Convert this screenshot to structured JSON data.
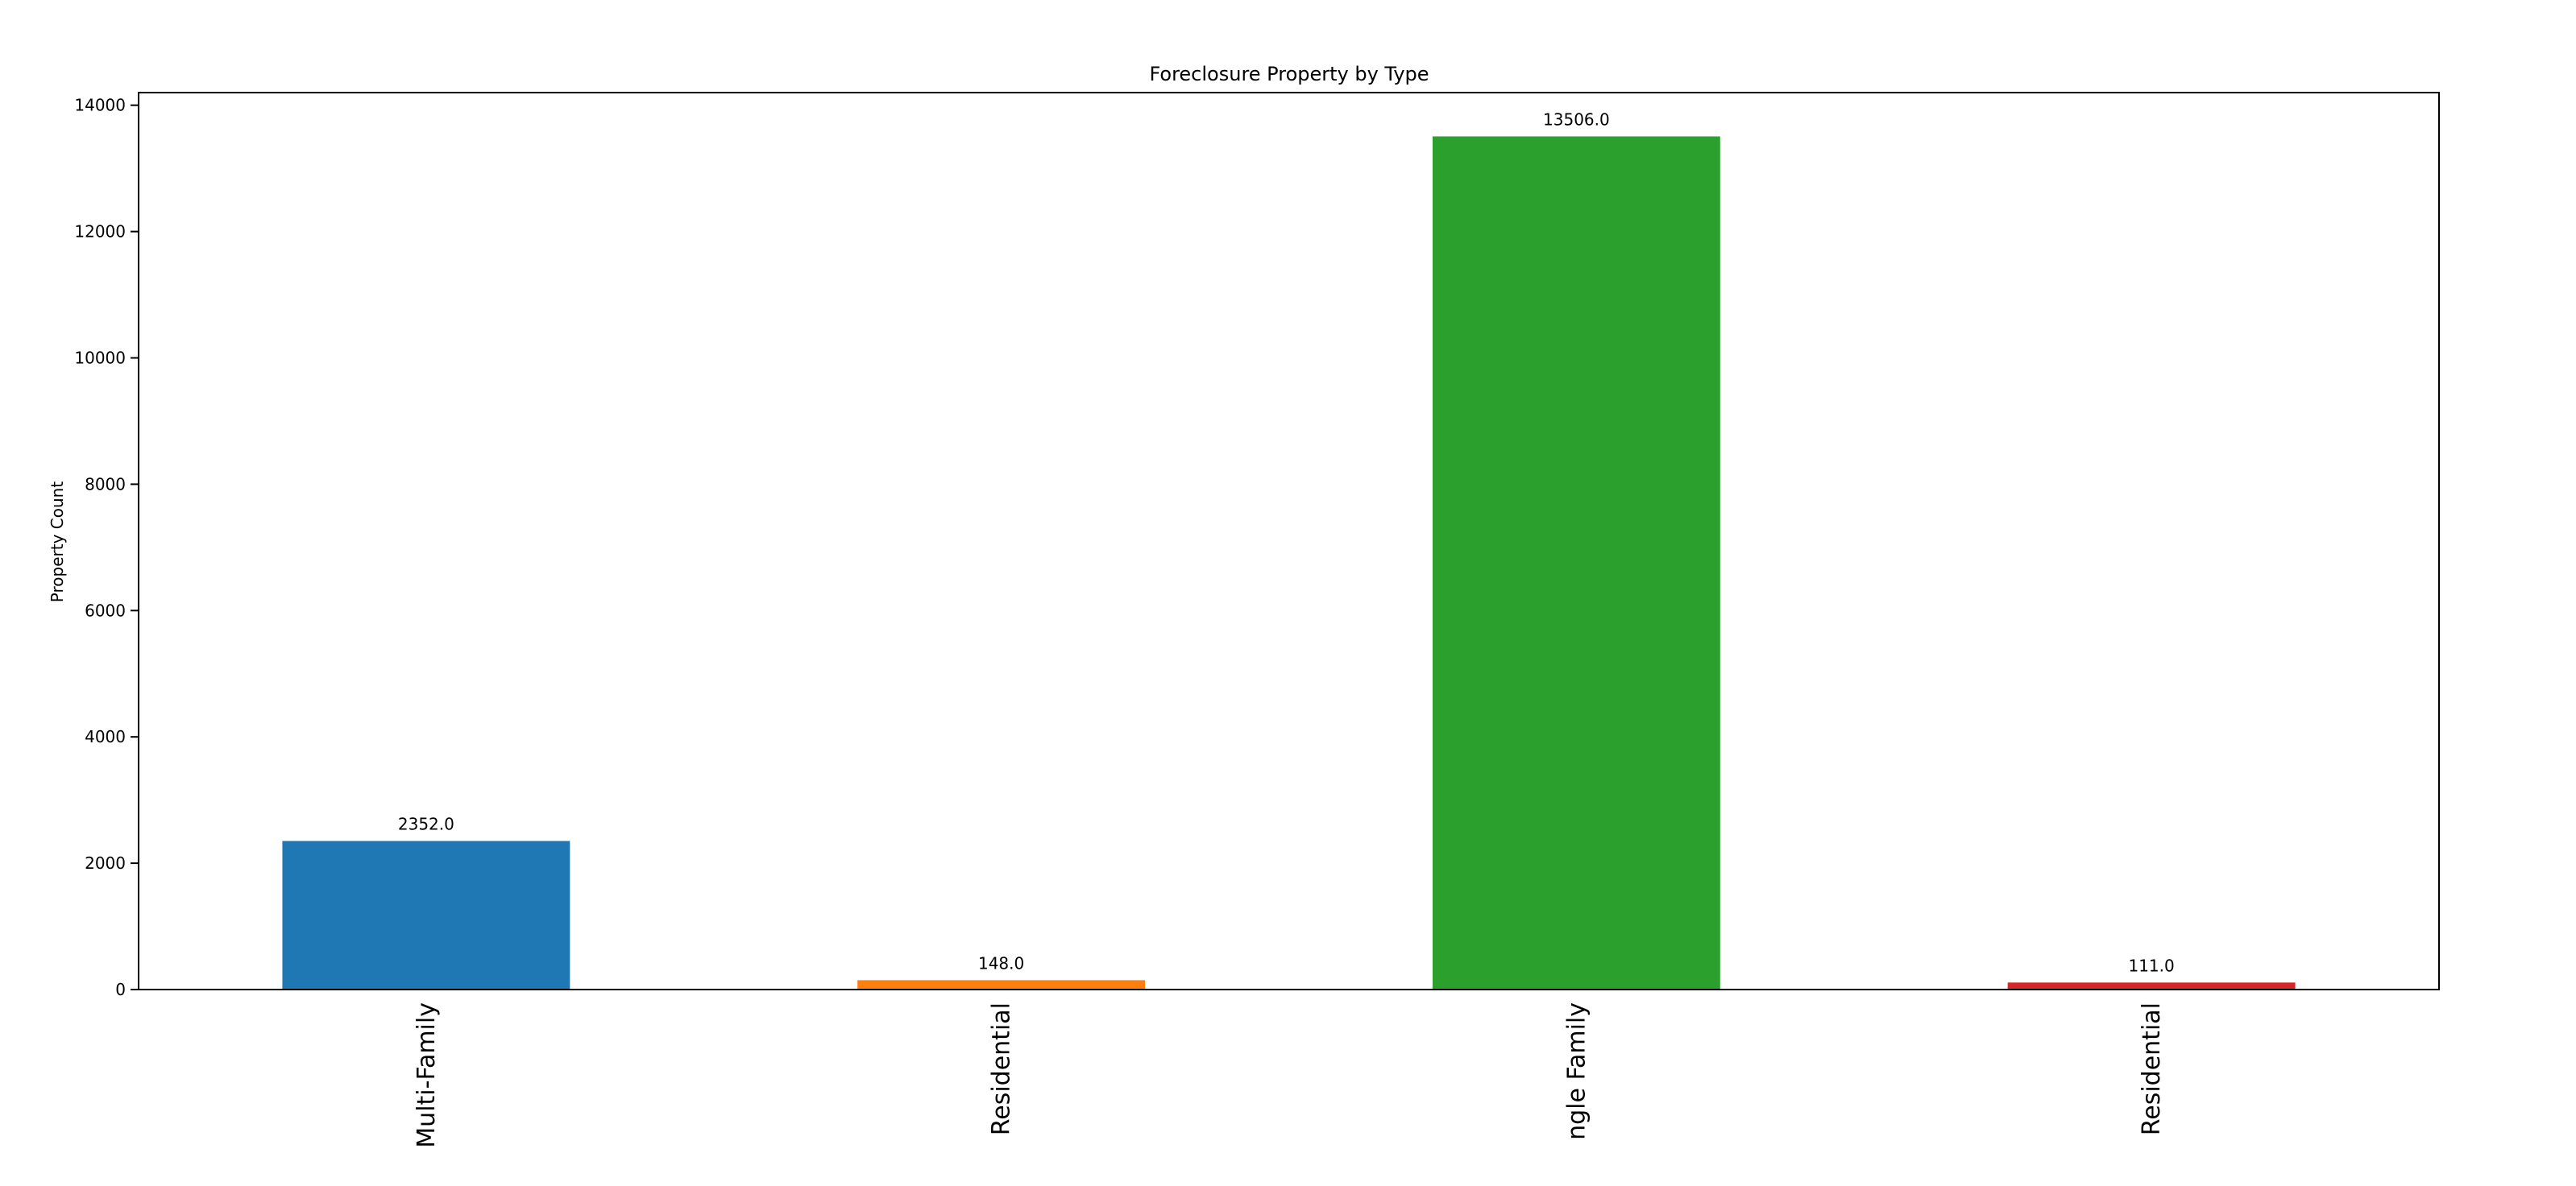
{
  "chart_data": {
    "type": "bar",
    "title": "Foreclosure Property by Type",
    "xlabel": "",
    "ylabel": "Property Count",
    "categories": [
      "Multi-Family",
      "Residential",
      "Single Family",
      "Residential"
    ],
    "visible_tick_labels": [
      "Multi-Family",
      "Residential",
      "ngle Family",
      "Residential"
    ],
    "values": [
      2352.0,
      148.0,
      13506.0,
      111.0
    ],
    "data_labels": [
      "2352.0",
      "148.0",
      "13506.0",
      "111.0"
    ],
    "colors": [
      "#1f77b4",
      "#ff7f0e",
      "#2ca02c",
      "#d62728"
    ],
    "ylim": [
      0,
      14200
    ],
    "yticks": [
      0,
      2000,
      4000,
      6000,
      8000,
      10000,
      12000,
      14000
    ],
    "grid": false,
    "legend": "none"
  }
}
